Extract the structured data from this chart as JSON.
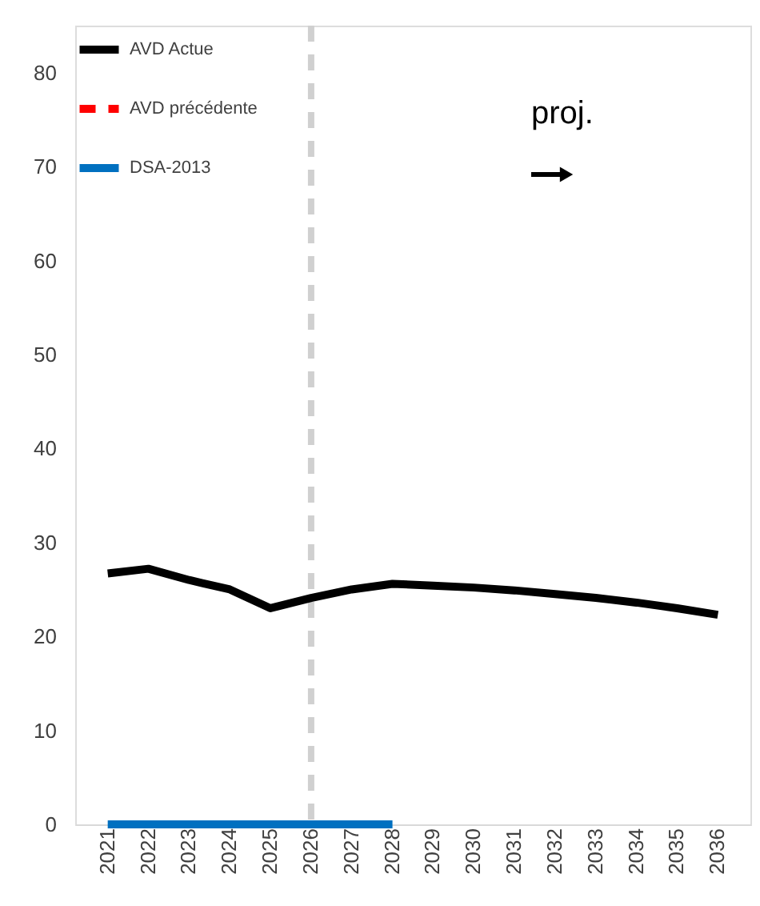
{
  "chart_data": {
    "type": "line",
    "categories": [
      "2021",
      "2022",
      "2023",
      "2024",
      "2025",
      "2026",
      "2027",
      "2028",
      "2029",
      "2030",
      "2031",
      "2032",
      "2033",
      "2034",
      "2035",
      "2036"
    ],
    "series": [
      {
        "name": "AVD Actue",
        "color": "#000000",
        "line_style": "solid",
        "values": [
          26.7,
          27.2,
          26,
          25,
          23,
          24.1,
          25,
          25.6,
          25.4,
          25.2,
          24.9,
          24.5,
          24.1,
          23.6,
          23,
          22.3
        ]
      },
      {
        "name": "AVD précédente",
        "color": "#ff0000",
        "line_style": "dashed",
        "values": [
          null,
          null,
          null,
          null,
          null,
          null,
          null,
          null,
          null,
          null,
          null,
          null,
          null,
          null,
          null,
          null
        ]
      },
      {
        "name": "DSA-2013",
        "color": "#0070c0",
        "line_style": "solid",
        "values": [
          0,
          0,
          0,
          0,
          0,
          0,
          0,
          0,
          null,
          null,
          null,
          null,
          null,
          null,
          null,
          null
        ]
      }
    ],
    "ylim": [
      0,
      85
    ],
    "yticks": [
      0,
      10,
      20,
      30,
      40,
      50,
      60,
      70,
      80
    ],
    "grid": false,
    "legend": "top left",
    "marker": "none",
    "ref_lines": [
      {
        "axis": "x",
        "value": "2026",
        "color": "#d0d0d0",
        "line_style": "dashed"
      }
    ],
    "annotations": [
      "proj."
    ]
  }
}
